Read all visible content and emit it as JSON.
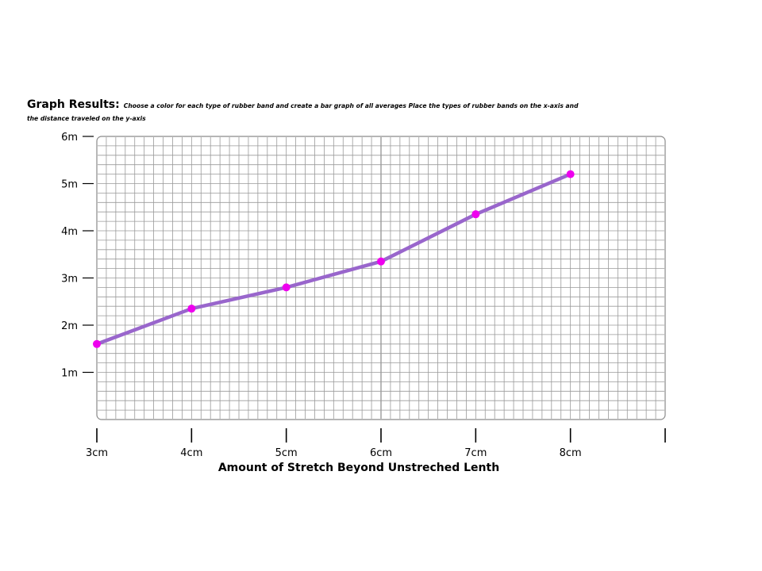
{
  "header": {
    "label": "Graph Results:",
    "instruction_line1": "Choose a color for each type of rubber band and create a bar graph of all averages  Place the types of rubber bands on the x-axis and",
    "instruction_line2": "the distance traveled on the y-axis"
  },
  "chart_data": {
    "type": "line",
    "title": "Graph Results:",
    "xlabel": "Amount of Stretch Beyond Unstreched Lenth",
    "ylabel": "",
    "x": [
      3,
      4,
      5,
      6,
      7,
      8
    ],
    "x_tick_labels": [
      "3cm",
      "4cm",
      "5cm",
      "6cm",
      "7cm",
      "8cm"
    ],
    "y_tick_labels": [
      "1m",
      "2m",
      "3m",
      "4m",
      "5m",
      "6m"
    ],
    "y_ticks": [
      1,
      2,
      3,
      4,
      5,
      6
    ],
    "xlim": [
      3,
      9
    ],
    "ylim": [
      0,
      6
    ],
    "grid": true,
    "series": [
      {
        "values": [
          1.6,
          2.35,
          2.8,
          3.35,
          4.35,
          5.2
        ],
        "color": "#9966cc",
        "marker_color": "#ee00ee"
      }
    ]
  }
}
